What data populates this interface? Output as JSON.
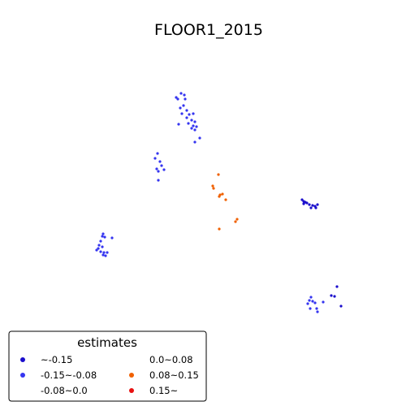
{
  "chart_data": {
    "type": "scatter",
    "title": "FLOOR1_2015",
    "axes_visible": false,
    "legend": {
      "title": "estimates",
      "placement": "lower-left",
      "columns": 2,
      "entries": [
        {
          "label": "~-0.15",
          "color": "#1a0dcc"
        },
        {
          "label": "-0.15~-0.08",
          "color": "#3535f0"
        },
        {
          "label": "-0.08~0.0",
          "color": "#ffffff"
        },
        {
          "label": "0.0~0.08",
          "color": "#ffffff"
        },
        {
          "label": "0.08~0.15",
          "color": "#f06000"
        },
        {
          "label": "0.15~",
          "color": "#e81010"
        }
      ]
    },
    "series": [
      {
        "name": "~-0.15",
        "color": "#1a0dcc",
        "points": [
          [
            372,
            246
          ],
          [
            374,
            248
          ],
          [
            376,
            249
          ],
          [
            378,
            250
          ],
          [
            374,
            251
          ],
          [
            381,
            252
          ],
          [
            385,
            253
          ],
          [
            388,
            254
          ],
          [
            391,
            252
          ],
          [
            383,
            256
          ],
          [
            389,
            256
          ],
          [
            415,
            353
          ],
          [
            408,
            364
          ],
          [
            412,
            365
          ],
          [
            420,
            377
          ]
        ]
      },
      {
        "name": "-0.15~-0.08",
        "color": "#3535f0",
        "points": [
          [
            223,
            115
          ],
          [
            217,
            120
          ],
          [
            219,
            122
          ],
          [
            227,
            117
          ],
          [
            228,
            122
          ],
          [
            226,
            130
          ],
          [
            222,
            133
          ],
          [
            230,
            136
          ],
          [
            224,
            140
          ],
          [
            233,
            141
          ],
          [
            238,
            140
          ],
          [
            230,
            145
          ],
          [
            236,
            148
          ],
          [
            232,
            152
          ],
          [
            240,
            150
          ],
          [
            238,
            155
          ],
          [
            236,
            158
          ],
          [
            242,
            156
          ],
          [
            240,
            160
          ],
          [
            220,
            153
          ],
          [
            246,
            170
          ],
          [
            240,
            175
          ],
          [
            194,
            189
          ],
          [
            191,
            195
          ],
          [
            197,
            199
          ],
          [
            199,
            204
          ],
          [
            202,
            209
          ],
          [
            195,
            211
          ],
          [
            193,
            208
          ],
          [
            195,
            222
          ],
          [
            127,
            288
          ],
          [
            126,
            291
          ],
          [
            129,
            292
          ],
          [
            138,
            293
          ],
          [
            124,
            297
          ],
          [
            122,
            302
          ],
          [
            121,
            306
          ],
          [
            126,
            304
          ],
          [
            119,
            308
          ],
          [
            124,
            310
          ],
          [
            127,
            314
          ],
          [
            130,
            315
          ],
          [
            132,
            311
          ],
          [
            128,
            311
          ],
          [
            383,
            366
          ],
          [
            381,
            370
          ],
          [
            385,
            371
          ],
          [
            388,
            373
          ],
          [
            379,
            374
          ],
          [
            398,
            372
          ],
          [
            382,
            380
          ],
          [
            390,
            380
          ],
          [
            391,
            384
          ]
        ]
      },
      {
        "name": "0.08~0.15",
        "color": "#f06000",
        "points": [
          [
            269,
            215
          ],
          [
            262,
            229
          ],
          [
            263,
            232
          ],
          [
            274,
            239
          ],
          [
            271,
            240
          ],
          [
            270,
            242
          ],
          [
            278,
            246
          ],
          [
            292,
            270
          ],
          [
            290,
            273
          ],
          [
            270,
            282
          ]
        ]
      }
    ]
  }
}
